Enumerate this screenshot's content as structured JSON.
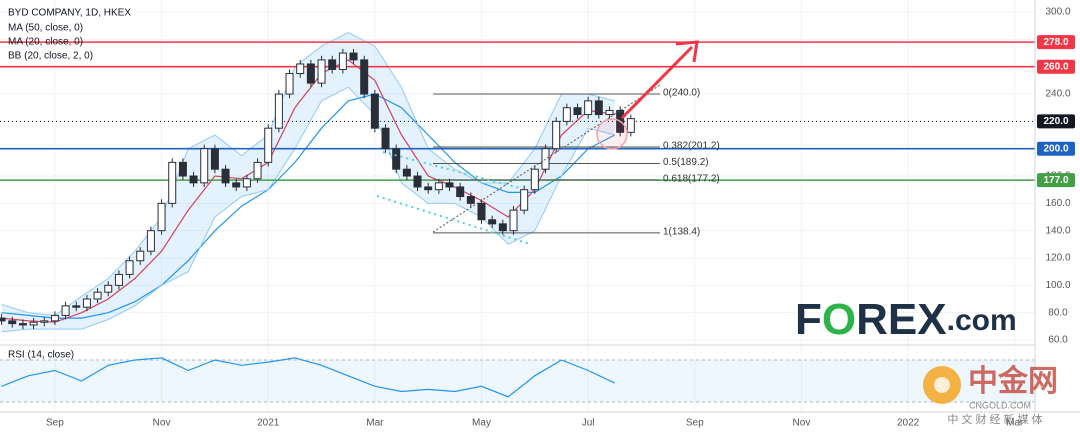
{
  "chart_data": {
    "type": "candlestick",
    "title": "BYD COMPANY, 1D, HKEX",
    "x": [
      0,
      0.2,
      0.4,
      0.6,
      0.8,
      1.0,
      1.2,
      1.4,
      1.6,
      1.8,
      2.0,
      2.2,
      2.4,
      2.6,
      2.8,
      3.0,
      3.2,
      3.4,
      3.6,
      3.8,
      4.0,
      4.2,
      4.4,
      4.6,
      4.8,
      5.0,
      5.2,
      5.4,
      5.6,
      5.8,
      6.0,
      6.2,
      6.4,
      6.6,
      6.8,
      7.0,
      7.2,
      7.4,
      7.6,
      7.8,
      8.0,
      8.2,
      8.4,
      8.6,
      8.8,
      9.0,
      9.2,
      9.4,
      9.6,
      9.8,
      10.0,
      10.2,
      10.4,
      10.6,
      10.8,
      11.0,
      11.2,
      11.4,
      11.6,
      11.8
    ],
    "open": [
      76,
      74,
      72,
      71,
      73,
      74,
      78,
      85,
      84,
      90,
      95,
      100,
      108,
      118,
      125,
      140,
      160,
      190,
      180,
      175,
      200,
      185,
      175,
      172,
      178,
      190,
      215,
      240,
      255,
      262,
      248,
      265,
      258,
      270,
      265,
      240,
      215,
      200,
      185,
      180,
      172,
      170,
      175,
      172,
      165,
      160,
      148,
      145,
      140,
      155,
      170,
      185,
      200,
      220,
      230,
      225,
      235,
      225,
      228,
      212
    ],
    "high": [
      79,
      77,
      75,
      76,
      77,
      81,
      88,
      88,
      93,
      98,
      103,
      111,
      121,
      128,
      143,
      163,
      193,
      193,
      183,
      203,
      203,
      188,
      178,
      181,
      193,
      218,
      243,
      258,
      265,
      265,
      268,
      268,
      273,
      273,
      268,
      243,
      218,
      203,
      188,
      183,
      175,
      178,
      178,
      175,
      168,
      163,
      151,
      148,
      158,
      173,
      188,
      203,
      223,
      233,
      233,
      238,
      238,
      231,
      231,
      225
    ],
    "low": [
      71,
      69,
      68,
      68,
      70,
      71,
      75,
      81,
      81,
      87,
      92,
      97,
      105,
      115,
      122,
      137,
      157,
      177,
      172,
      172,
      182,
      172,
      169,
      169,
      175,
      187,
      212,
      237,
      252,
      245,
      245,
      255,
      255,
      262,
      237,
      212,
      197,
      182,
      177,
      169,
      167,
      167,
      169,
      162,
      157,
      145,
      142,
      137,
      137,
      152,
      167,
      182,
      197,
      217,
      222,
      222,
      222,
      222,
      209,
      209
    ],
    "close": [
      74,
      72,
      71,
      73,
      74,
      78,
      85,
      84,
      90,
      95,
      100,
      108,
      118,
      125,
      140,
      160,
      190,
      180,
      175,
      200,
      185,
      175,
      172,
      178,
      190,
      215,
      240,
      255,
      262,
      248,
      265,
      258,
      270,
      265,
      240,
      215,
      200,
      185,
      180,
      172,
      170,
      175,
      172,
      165,
      160,
      148,
      145,
      140,
      155,
      170,
      185,
      200,
      220,
      230,
      225,
      235,
      225,
      228,
      212,
      222
    ],
    "up_color": "#ffffff",
    "down_color": "#2a2e39",
    "indicators": {
      "x": [
        0,
        0.5,
        1,
        1.5,
        2,
        2.5,
        3,
        3.5,
        4,
        4.5,
        5,
        5.5,
        6,
        6.5,
        7,
        7.5,
        8,
        8.5,
        9,
        9.5,
        10,
        10.5,
        11,
        11.5
      ],
      "series": [
        {
          "name": "MA (50, close, 0)",
          "color": "#2196f3",
          "values": [
            80,
            78,
            76,
            76,
            80,
            88,
            100,
            118,
            140,
            158,
            170,
            190,
            215,
            235,
            240,
            230,
            210,
            190,
            175,
            168,
            168,
            180,
            200,
            210
          ]
        },
        {
          "name": "MA (20, close, 0)",
          "color": "#f23645",
          "values": [
            76,
            74,
            73,
            80,
            90,
            105,
            125,
            155,
            180,
            178,
            190,
            230,
            255,
            265,
            250,
            210,
            180,
            172,
            162,
            150,
            170,
            210,
            228,
            225
          ]
        },
        {
          "name": "BB (20, close, 2, 0)",
          "color": "#90caf9",
          "upper": [
            86,
            80,
            78,
            92,
            105,
            125,
            150,
            200,
            210,
            195,
            210,
            260,
            275,
            285,
            275,
            245,
            200,
            185,
            175,
            175,
            200,
            240,
            240,
            235
          ],
          "lower": [
            66,
            68,
            68,
            68,
            75,
            85,
            100,
            110,
            150,
            165,
            170,
            200,
            235,
            245,
            225,
            175,
            160,
            160,
            150,
            130,
            140,
            180,
            215,
            210
          ]
        }
      ]
    },
    "levels": [
      {
        "value": 278,
        "label": "278.0",
        "color": "#f23645"
      },
      {
        "value": 260,
        "label": "260.0",
        "color": "#f23645"
      },
      {
        "value": 220,
        "label": "220.0",
        "color": "#131722"
      },
      {
        "value": 200,
        "label": "200.0",
        "color": "#1e63c4"
      },
      {
        "value": 177,
        "label": "177.0",
        "color": "#43a047"
      }
    ],
    "fib": [
      {
        "value": 240,
        "label": "0(240.0)"
      },
      {
        "value": 201.2,
        "label": "0.382(201.2)"
      },
      {
        "value": 189.2,
        "label": "0.5(189.2)"
      },
      {
        "value": 177.2,
        "label": "0.618(177.2)"
      },
      {
        "value": 138.4,
        "label": "1(138.4)"
      }
    ],
    "rsi": {
      "name": "RSI (14, close)",
      "color": "#2196f3",
      "band": [
        30,
        70
      ],
      "ylim": [
        20,
        80
      ],
      "values": [
        45,
        55,
        60,
        50,
        65,
        70,
        72,
        60,
        70,
        65,
        68,
        72,
        65,
        55,
        45,
        40,
        42,
        40,
        45,
        35,
        55,
        70,
        60,
        48
      ]
    },
    "xlim": [
      -0.03,
      19.38
    ],
    "xticks": [
      {
        "value": 1,
        "label": "Sep"
      },
      {
        "value": 3,
        "label": "Nov"
      },
      {
        "value": 5,
        "label": "2021"
      },
      {
        "value": 7,
        "label": "Mar"
      },
      {
        "value": 9,
        "label": "May"
      },
      {
        "value": 11,
        "label": "Jul"
      },
      {
        "value": 13,
        "label": "Sep"
      },
      {
        "value": 15,
        "label": "Nov"
      },
      {
        "value": 17,
        "label": "2022"
      },
      {
        "value": 19,
        "label": "Mar"
      }
    ],
    "ylim": [
      57.8,
      305.9
    ],
    "yticks": [
      {
        "value": 60,
        "label": "60.0"
      },
      {
        "value": 80,
        "label": "80.0"
      },
      {
        "value": 100,
        "label": "100.0"
      },
      {
        "value": 120,
        "label": "120.0"
      },
      {
        "value": 140,
        "label": "140.0"
      },
      {
        "value": 160,
        "label": "160.0"
      },
      {
        "value": 180,
        "label": "180.0"
      },
      {
        "value": 200,
        "label": "200.0"
      },
      {
        "value": 220,
        "label": "220.0"
      },
      {
        "value": 240,
        "label": "240.0"
      },
      {
        "value": 260,
        "label": "260.0"
      },
      {
        "value": 280,
        "label": "280.0"
      },
      {
        "value": 300,
        "label": "300.0"
      }
    ],
    "grid": true,
    "logo": [
      "F",
      "O",
      "REX",
      ".com"
    ],
    "watermark": {
      "name": "中金网",
      "site": "CNGOLD.COM",
      "slogan": "中 文 财 经 新 媒 体"
    }
  }
}
